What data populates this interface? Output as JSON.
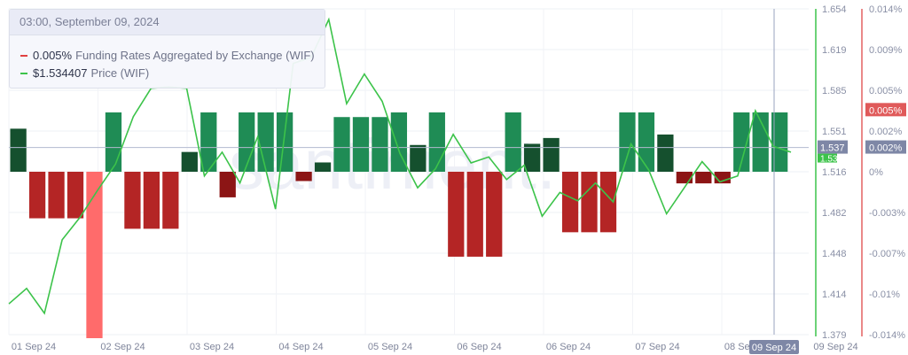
{
  "tooltip": {
    "datetime": "03:00, September 09, 2024",
    "funding_value": "0.005%",
    "funding_label": "Funding Rates Aggregated by Exchange (WIF)",
    "price_value": "$1.534407",
    "price_label": "Price (WIF)"
  },
  "watermark": "santiment.",
  "colors": {
    "price_line": "#3cc34a",
    "bar_pos_bright": "#1f8c55",
    "bar_pos_dark": "#15502e",
    "bar_neg_bright": "#b42525",
    "bar_neg_dark": "#8c1515",
    "bar_highlight": "#ff6b6b",
    "funding_axis": "#e46060",
    "price_axis": "#3cc34a",
    "crosshair_badge": "#7e87a6"
  },
  "chart_data": {
    "type": "bar+line",
    "x_tick_labels": [
      "01 Sep 24",
      "02 Sep 24",
      "03 Sep 24",
      "04 Sep 24",
      "05 Sep 24",
      "06 Sep 24",
      "06 Sep 24",
      "07 Sep 24",
      "08 Sep 24",
      "09 Sep 24",
      "Sep 24"
    ],
    "price_axis": {
      "ticks": [
        "1.654",
        "1.619",
        "1.585",
        "1.551",
        "1.516",
        "1.482",
        "1.448",
        "1.414",
        "1.379"
      ],
      "ylim": [
        1.379,
        1.654
      ]
    },
    "funding_axis": {
      "ticks": [
        "0.014%",
        "0.009%",
        "0.005%",
        "0.002%",
        "0%",
        "-0.003%",
        "-0.007%",
        "-0.01%",
        "-0.014%"
      ],
      "ylim": [
        -0.014,
        0.014
      ]
    },
    "crosshair": {
      "x_label": "09 Sep 24",
      "price_label": "1.537",
      "price_secondary": "1.53",
      "funding_label": "0.002%",
      "funding_badge": "0.005%"
    },
    "funding_series": {
      "name": "Funding Rates Aggregated by Exchange (WIF)",
      "unit": "%",
      "values": [
        0.0037,
        -0.004,
        -0.004,
        -0.004,
        -0.0019,
        0.0051,
        -0.0049,
        -0.0049,
        -0.0049,
        0.0017,
        0.0051,
        -0.0022,
        0.0051,
        0.0051,
        0.0051,
        -0.0008,
        0.0008,
        0.0047,
        0.0047,
        0.0047,
        0.0051,
        0.0023,
        0.0051,
        -0.0073,
        -0.0073,
        -0.0073,
        0.0051,
        0.0024,
        0.0029,
        -0.0052,
        -0.0052,
        -0.0052,
        0.0051,
        0.0051,
        0.0032,
        -0.001,
        -0.001,
        -0.001,
        0.0051,
        0.0051,
        0.0051
      ],
      "highlight_index": 4
    },
    "price_series": {
      "name": "Price (WIF)",
      "values": [
        1.405,
        1.418,
        1.397,
        1.459,
        1.478,
        1.501,
        1.523,
        1.563,
        1.587,
        1.588,
        1.587,
        1.513,
        1.533,
        1.507,
        1.546,
        1.485,
        1.608,
        1.613,
        1.645,
        1.574,
        1.599,
        1.576,
        1.532,
        1.503,
        1.519,
        1.548,
        1.524,
        1.529,
        1.51,
        1.522,
        1.479,
        1.499,
        1.492,
        1.507,
        1.491,
        1.54,
        1.518,
        1.481,
        1.503,
        1.525,
        1.508,
        1.513,
        1.568,
        1.538,
        1.533
      ]
    }
  }
}
